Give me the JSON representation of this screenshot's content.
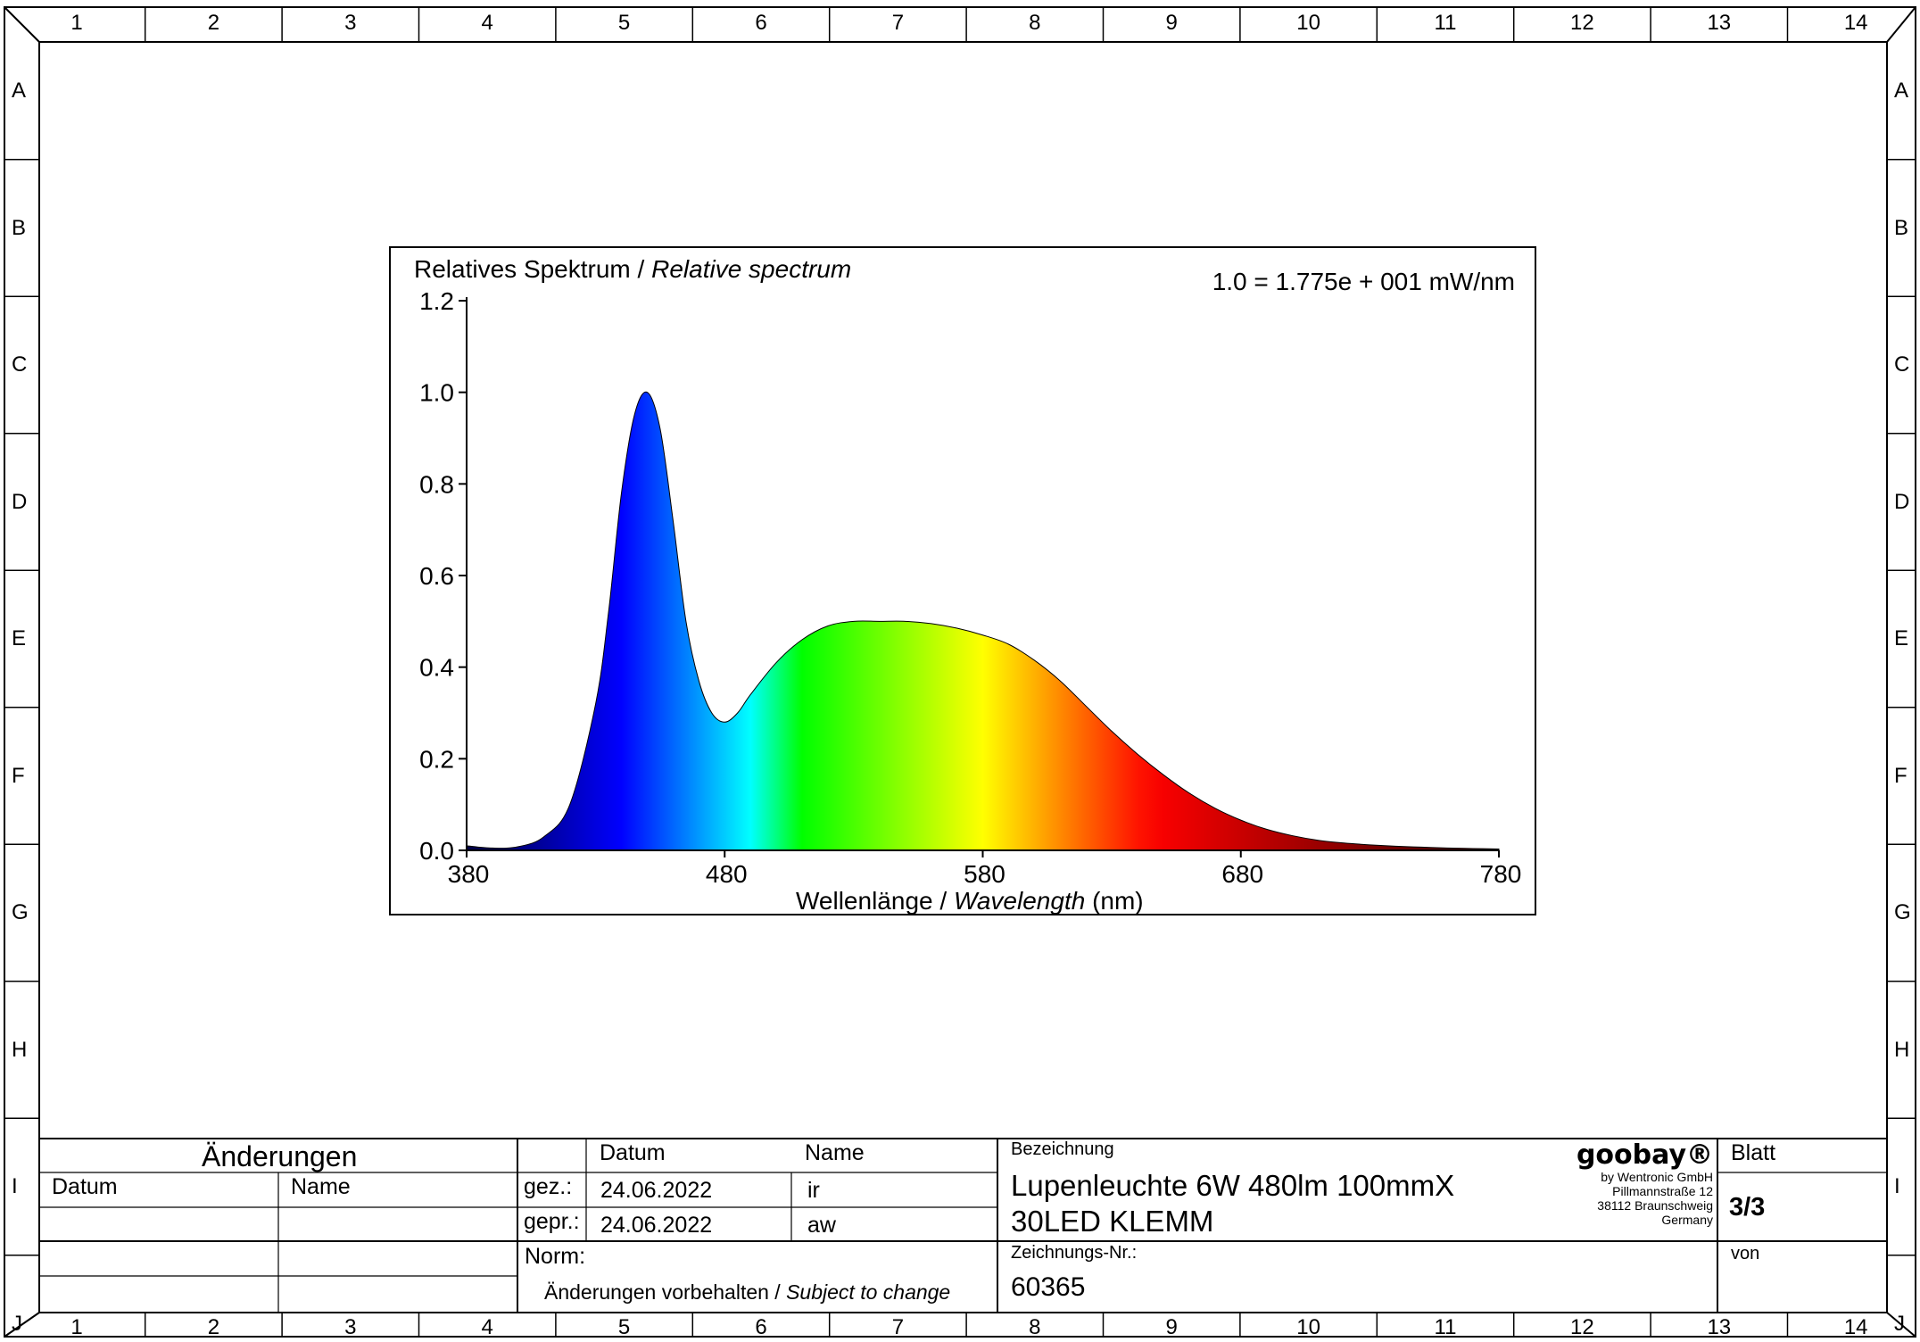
{
  "frame": {
    "columns": [
      "1",
      "2",
      "3",
      "4",
      "5",
      "6",
      "7",
      "8",
      "9",
      "10",
      "11",
      "12",
      "13",
      "14"
    ],
    "rows": [
      "A",
      "B",
      "C",
      "D",
      "E",
      "F",
      "G",
      "H",
      "I",
      "J"
    ]
  },
  "chart": {
    "title_de": "Relatives Spektrum / ",
    "title_en": "Relative spectrum",
    "scale_note": "1.0 = 1.775e + 001 mW/nm",
    "xlabel_de": "Wellenlänge / ",
    "xlabel_en": "Wavelength",
    "xlabel_unit": " (nm)"
  },
  "chart_data": {
    "type": "area",
    "x_unit": "nm",
    "xlim": [
      380,
      780
    ],
    "ylim": [
      0,
      1.2
    ],
    "x_ticks": [
      380,
      480,
      580,
      680,
      780
    ],
    "y_ticks": [
      0.0,
      0.2,
      0.4,
      0.6,
      0.8,
      1.0,
      1.2
    ],
    "x": [
      380,
      390,
      400,
      410,
      420,
      430,
      435,
      440,
      445,
      450,
      455,
      460,
      465,
      470,
      475,
      480,
      485,
      490,
      500,
      510,
      520,
      530,
      540,
      550,
      560,
      570,
      580,
      590,
      600,
      610,
      620,
      630,
      640,
      650,
      660,
      670,
      680,
      690,
      700,
      710,
      720,
      730,
      740,
      750,
      760,
      770,
      780
    ],
    "y": [
      0.01,
      0.005,
      0.008,
      0.03,
      0.1,
      0.32,
      0.52,
      0.78,
      0.95,
      1.0,
      0.92,
      0.72,
      0.5,
      0.37,
      0.3,
      0.28,
      0.3,
      0.34,
      0.41,
      0.46,
      0.49,
      0.5,
      0.5,
      0.5,
      0.495,
      0.485,
      0.47,
      0.45,
      0.415,
      0.37,
      0.315,
      0.26,
      0.21,
      0.165,
      0.125,
      0.092,
      0.066,
      0.046,
      0.032,
      0.022,
      0.016,
      0.012,
      0.009,
      0.007,
      0.005,
      0.004,
      0.003
    ]
  },
  "changes_block": {
    "title": "Änderungen",
    "col_date": "Datum",
    "col_name": "Name"
  },
  "approval": {
    "col_date": "Datum",
    "col_name": "Name",
    "drawn_label": "gez.:",
    "drawn_date": "24.06.2022",
    "drawn_name": "ir",
    "checked_label": "gepr.:",
    "checked_date": "24.06.2022",
    "checked_name": "aw",
    "norm_label": "Norm:",
    "disclaimer_de": "Änderungen vorbehalten / ",
    "disclaimer_en": "Subject to change"
  },
  "title_block": {
    "designation_label": "Bezeichnung",
    "designation_line1": "Lupenleuchte 6W 480lm 100mmX",
    "designation_line2": "30LED KLEMM",
    "drawing_no_label": "Zeichnungs-Nr.:",
    "drawing_no": "60365",
    "sheet_label": "Blatt",
    "sheet_value": "3/3",
    "of_label": "von"
  },
  "company": {
    "logo": "goobay®",
    "line1": "by Wentronic GmbH",
    "line2": "Pillmannstraße 12",
    "line3": "38112 Braunschweig",
    "line4": "Germany"
  }
}
